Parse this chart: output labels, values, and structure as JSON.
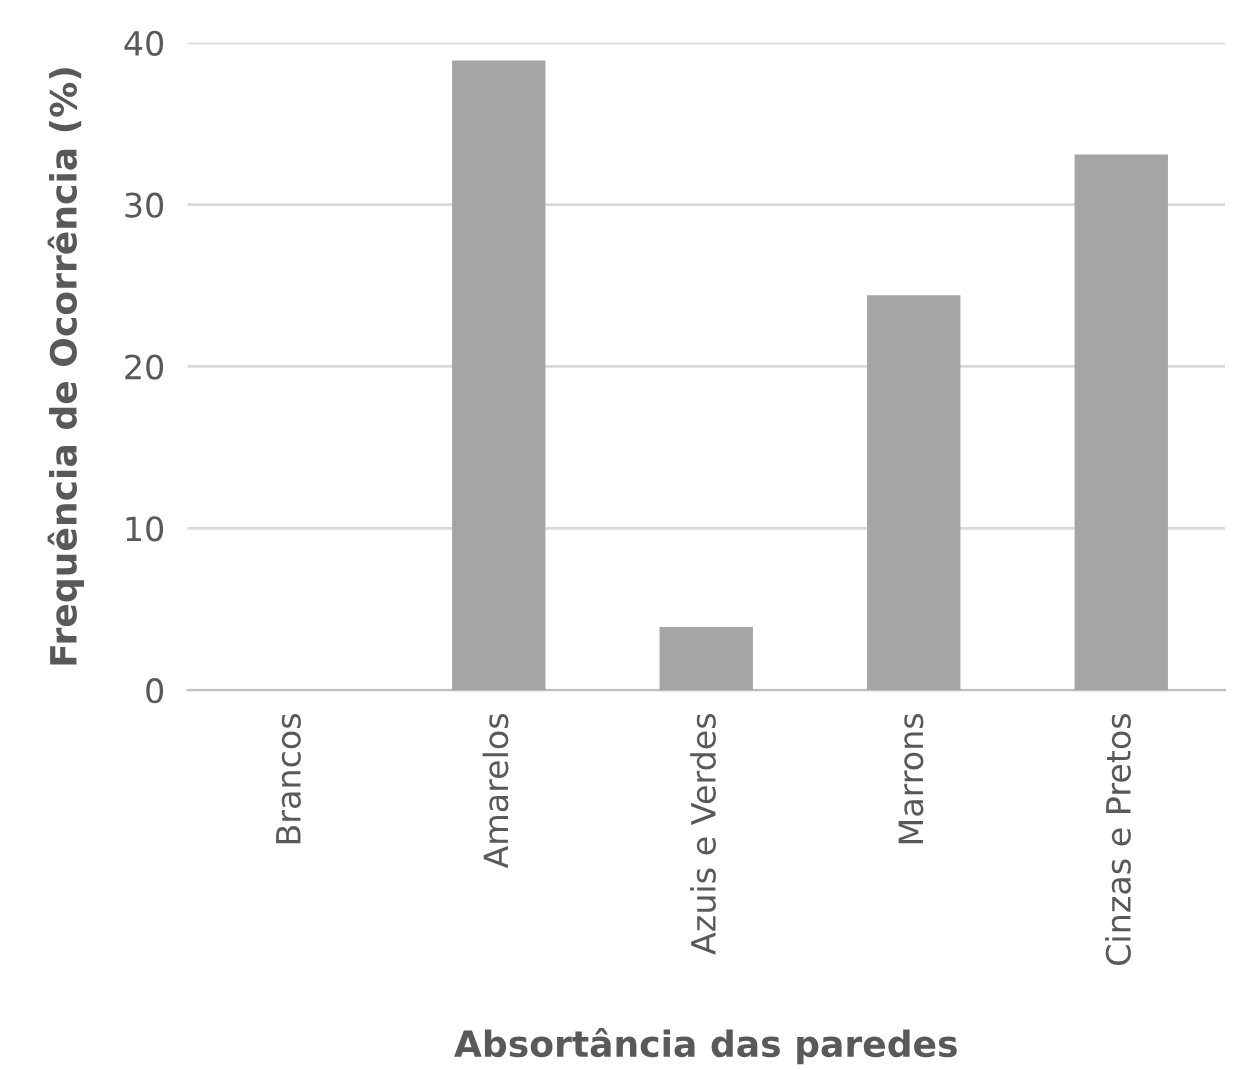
{
  "chart_data": {
    "type": "bar",
    "xlabel": "Absortância das paredes",
    "ylabel": "Frequência de Ocorrência (%)",
    "categories": [
      "Brancos",
      "Amarelos",
      "Azuis e Verdes",
      "Marrons",
      "Cinzas e Pretos"
    ],
    "values": [
      0,
      38.9,
      3.9,
      24.4,
      33.1
    ],
    "color": "#a5a5a5",
    "ylim": [
      0,
      40
    ],
    "yticks": [
      0,
      10,
      20,
      30,
      40
    ],
    "grid": "y"
  }
}
